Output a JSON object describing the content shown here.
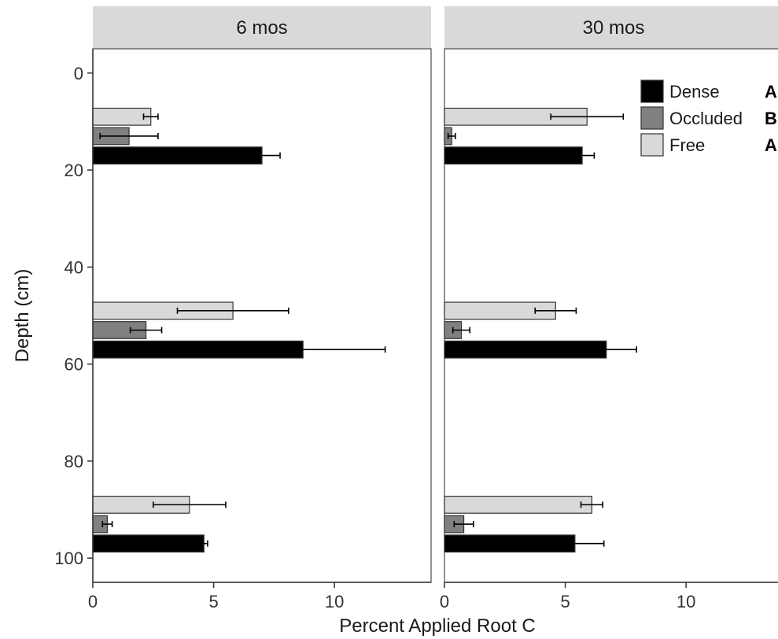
{
  "chart_data": {
    "type": "bar",
    "orientation": "horizontal",
    "xlabel": "Percent Applied Root C",
    "ylabel": "Depth (cm)",
    "xlim": [
      0,
      14
    ],
    "ylim": [
      105,
      -5
    ],
    "x_ticks": [
      0,
      5,
      10
    ],
    "y_ticks": [
      0,
      20,
      40,
      60,
      80,
      100
    ],
    "grid": false,
    "legend_position": "top-right",
    "legend": [
      {
        "name": "Dense",
        "letter": "A",
        "color": "#000000"
      },
      {
        "name": "Occluded",
        "letter": "B",
        "color": "#808080"
      },
      {
        "name": "Free",
        "letter": "A",
        "color": "#d9d9d9"
      }
    ],
    "panels": [
      {
        "label": "6 mos",
        "series": [
          {
            "name": "Dense",
            "depths": [
              17,
              57,
              97
            ],
            "values": [
              7.0,
              8.7,
              4.6
            ],
            "errors": [
              0.75,
              3.4,
              0.15
            ]
          },
          {
            "name": "Occluded",
            "depths": [
              13,
              53,
              93
            ],
            "values": [
              1.5,
              2.2,
              0.6
            ],
            "errors": [
              1.2,
              0.65,
              0.2
            ]
          },
          {
            "name": "Free",
            "depths": [
              9,
              49,
              89
            ],
            "values": [
              2.4,
              5.8,
              4.0
            ],
            "errors": [
              0.3,
              2.3,
              1.5
            ]
          }
        ]
      },
      {
        "label": "30 mos",
        "series": [
          {
            "name": "Dense",
            "depths": [
              17,
              57,
              97
            ],
            "values": [
              5.7,
              6.7,
              5.4
            ],
            "errors": [
              0.5,
              1.25,
              1.2
            ]
          },
          {
            "name": "Occluded",
            "depths": [
              13,
              53,
              93
            ],
            "values": [
              0.3,
              0.7,
              0.8
            ],
            "errors": [
              0.15,
              0.35,
              0.4
            ]
          },
          {
            "name": "Free",
            "depths": [
              9,
              49,
              89
            ],
            "values": [
              5.9,
              4.6,
              6.1
            ],
            "errors": [
              1.5,
              0.85,
              0.45
            ]
          }
        ]
      }
    ]
  }
}
